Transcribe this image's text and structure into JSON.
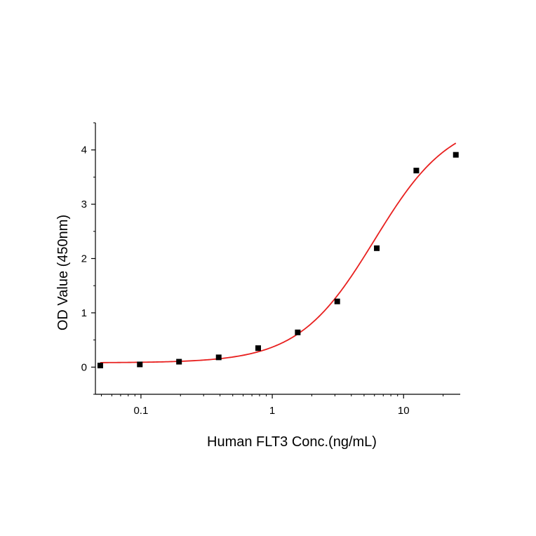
{
  "chart_data": {
    "type": "scatter",
    "title": "",
    "xlabel": "Human FLT3 Conc.(ng/mL)",
    "ylabel": "OD Value (450nm)",
    "x_scale": "log",
    "xlim": [
      0.045,
      27
    ],
    "ylim": [
      -0.5,
      4.5
    ],
    "x_ticks": [
      0.1,
      1,
      10
    ],
    "x_tick_labels": [
      "0.1",
      "1",
      "10"
    ],
    "y_ticks": [
      0,
      1,
      2,
      3,
      4
    ],
    "y_tick_labels": [
      "0",
      "1",
      "2",
      "3",
      "4"
    ],
    "grid": false,
    "legend": "none",
    "series": [
      {
        "marker": "square",
        "color": "#000000",
        "points": [
          {
            "x": 0.049,
            "y": 0.03
          },
          {
            "x": 0.098,
            "y": 0.05
          },
          {
            "x": 0.195,
            "y": 0.1
          },
          {
            "x": 0.391,
            "y": 0.18
          },
          {
            "x": 0.781,
            "y": 0.35
          },
          {
            "x": 1.563,
            "y": 0.64
          },
          {
            "x": 3.125,
            "y": 1.21
          },
          {
            "x": 6.25,
            "y": 2.19
          },
          {
            "x": 12.5,
            "y": 3.62
          },
          {
            "x": 25,
            "y": 3.91
          }
        ]
      }
    ],
    "fit_curve": {
      "color": "#e8201f",
      "model": "4PL",
      "bottom": 0.08,
      "top": 4.6,
      "ec50": 6.0,
      "hill": 1.5
    }
  }
}
